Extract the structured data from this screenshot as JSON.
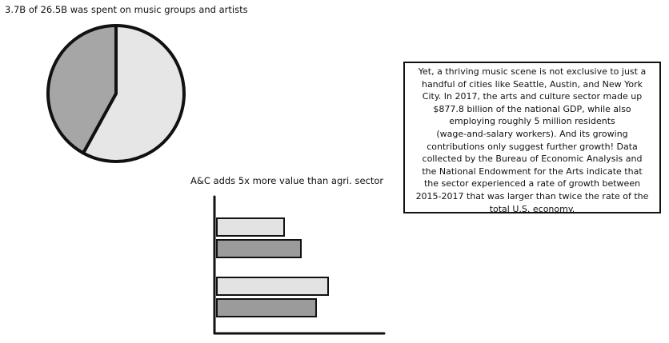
{
  "colors": {
    "stroke": "#111111",
    "pie_light": "#e6e6e6",
    "pie_dark": "#a6a6a6",
    "bar_light": "#e3e3e3",
    "bar_dark": "#9b9b9b"
  },
  "pie_chart": {
    "title": "3.7B of 26.5B was spent on music groups and artists"
  },
  "bar_chart": {
    "title": "A&C adds 5x more value than agri. sector"
  },
  "chart_data": [
    {
      "type": "pie",
      "title": "3.7B of 26.5B was spent on music groups and artists",
      "slices": [
        {
          "value": 58,
          "color": "#e6e6e6"
        },
        {
          "value": 42,
          "color": "#a6a6a6"
        }
      ]
    },
    {
      "type": "bar",
      "orientation": "horizontal",
      "title": "A&C adds 5x more value than agri. sector",
      "groups": [
        {
          "values": [
            84,
            105
          ]
        },
        {
          "values": [
            139,
            124
          ]
        }
      ],
      "series_colors": [
        "#e3e3e3",
        "#9b9b9b"
      ],
      "xlim": [
        0,
        185
      ],
      "axis_labels": false
    }
  ],
  "text_box": {
    "lines": [
      "Yet, a thriving music scene is not exclusive to just a",
      "handful of cities like Seattle, Austin, and New York",
      "City. In 2017, the arts and culture sector made up",
      "$877.8 billion of the national GDP, while also",
      "employing roughly 5 million residents",
      "(wage-and-salary workers). And its growing",
      "contributions only suggest further growth! Data",
      "collected by the Bureau of Economic Analysis and",
      "the National Endowment for the Arts indicate that",
      "the sector experienced a rate of growth between",
      "2015-2017 that was larger than twice the rate of the",
      "total U.S. economy."
    ]
  }
}
